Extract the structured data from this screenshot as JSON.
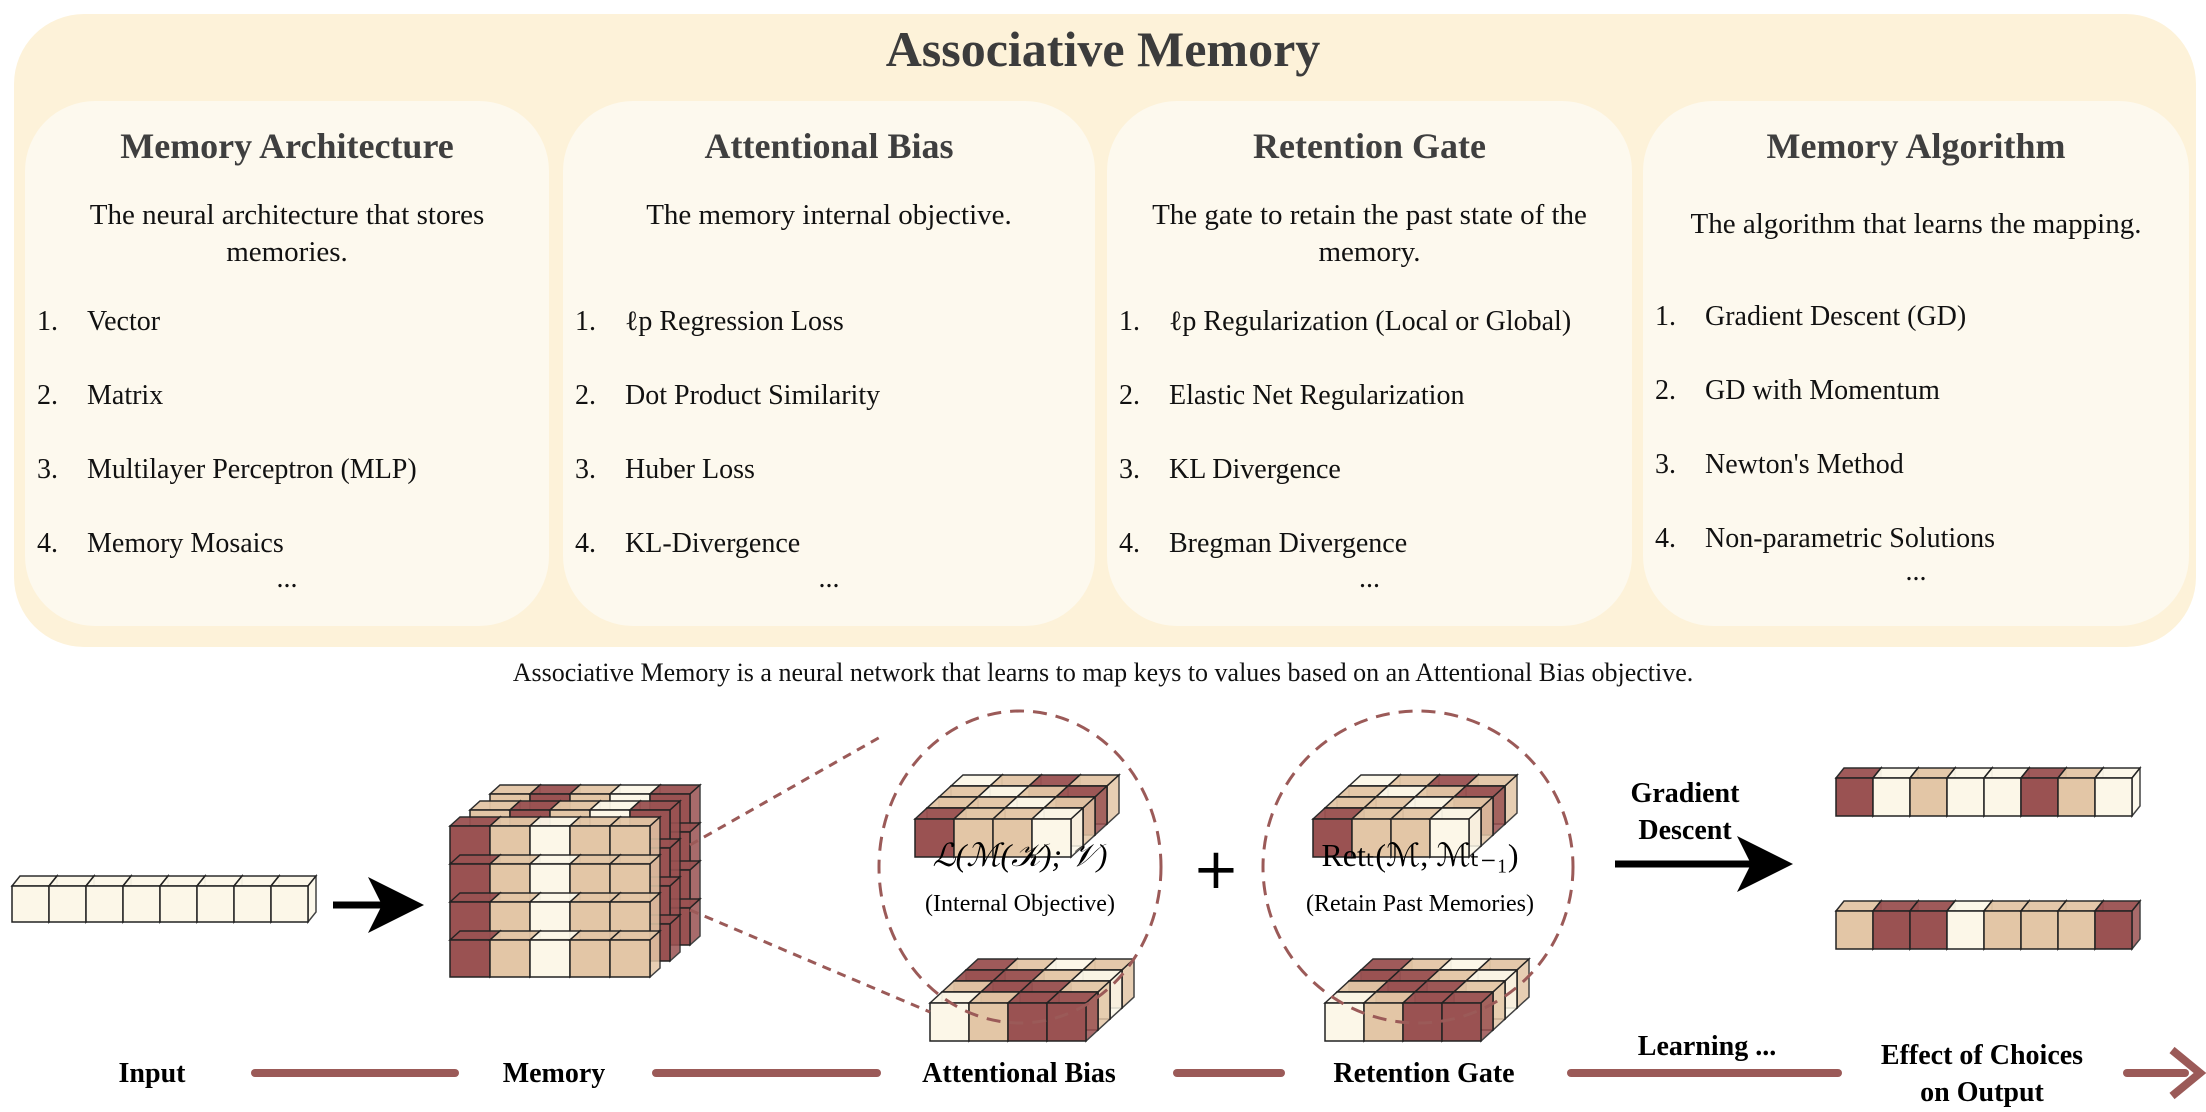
{
  "title": "Associative Memory",
  "cards": [
    {
      "heading": "Memory Architecture",
      "description": "The neural architecture that stores memories.",
      "items": [
        {
          "num": "1.",
          "text": "Vector"
        },
        {
          "num": "2.",
          "text": "Matrix"
        },
        {
          "num": "3.",
          "text": "Multilayer Perceptron (MLP)"
        },
        {
          "num": "4.",
          "text": "Memory Mosaics"
        }
      ],
      "more": "..."
    },
    {
      "heading": "Attentional Bias",
      "description": "The memory internal objective.",
      "items": [
        {
          "num": "1.",
          "text": "ℓp Regression Loss"
        },
        {
          "num": "2.",
          "text": "Dot Product Similarity"
        },
        {
          "num": "3.",
          "text": "Huber Loss"
        },
        {
          "num": "4.",
          "text": "KL-Divergence"
        }
      ],
      "more": "..."
    },
    {
      "heading": "Retention Gate",
      "description": "The gate to retain the past state of the memory.",
      "items": [
        {
          "num": "1.",
          "text": "ℓp Regularization (Local or Global)"
        },
        {
          "num": "2.",
          "text": "Elastic Net Regularization"
        },
        {
          "num": "3.",
          "text": "KL Divergence"
        },
        {
          "num": "4.",
          "text": "Bregman Divergence"
        }
      ],
      "more": "..."
    },
    {
      "heading": "Memory Algorithm",
      "description": "The algorithm that learns the mapping.",
      "items": [
        {
          "num": "1.",
          "text": "Gradient Descent (GD)"
        },
        {
          "num": "2.",
          "text": "GD with Momentum"
        },
        {
          "num": "3.",
          "text": "Newton's Method"
        },
        {
          "num": "4.",
          "text": "Non-parametric Solutions"
        }
      ],
      "more": "..."
    }
  ],
  "caption": "Associative Memory is a neural network that learns to map keys to values based on an Attentional Bias objective.",
  "diagram": {
    "objective_formula": "ℒ(ℳ(𝒦); 𝒱)",
    "objective_note": "(Internal Objective)",
    "plus": "+",
    "retention_formula": "Retₜ(ℳ, ℳₜ₋₁)",
    "retention_note": "(Retain Past Memories)",
    "arrow_label_1": "Gradient",
    "arrow_label_2": "Descent",
    "pipeline": {
      "input": "Input",
      "memory": "Memory",
      "attentional_bias": "Attentional Bias",
      "retention_gate": "Retention Gate",
      "learning": "Learning ...",
      "effect_1": "Effect of Choices",
      "effect_2": "on Output"
    }
  },
  "colors": {
    "accent": "#9b5a58",
    "panel": "#fdf2d9",
    "card": "#fdf9ee",
    "cell_dark": "#9a5252",
    "cell_tan": "#e3c6a6",
    "cell_light": "#fcf7e8"
  }
}
